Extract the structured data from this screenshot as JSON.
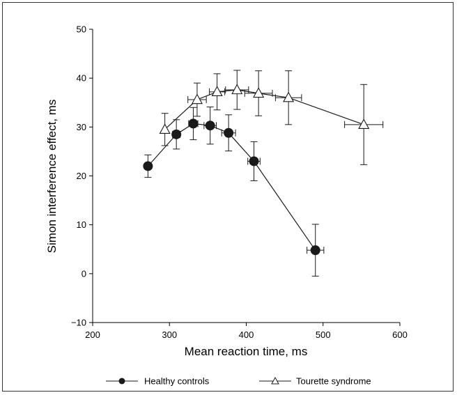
{
  "chart_data": {
    "type": "scatter",
    "title": "",
    "xlabel": "Mean reaction time, ms",
    "ylabel": "Simon interference effect, ms",
    "xlim": [
      200,
      600
    ],
    "ylim": [
      -10,
      50
    ],
    "xticks": [
      "200",
      "300",
      "400",
      "500",
      "600"
    ],
    "yticks": [
      "−10",
      "0",
      "10",
      "20",
      "30",
      "40",
      "50"
    ],
    "grid": false,
    "legend_position": "bottom",
    "series": [
      {
        "name": "Healthy controls",
        "marker": "filled-circle",
        "color": "#1a1a1a",
        "points": [
          {
            "x": 272,
            "y": 22.0,
            "yerr": 2.3,
            "xerr": 0
          },
          {
            "x": 309,
            "y": 28.5,
            "yerr": 3.0,
            "xerr": 5
          },
          {
            "x": 331,
            "y": 30.7,
            "yerr": 3.3,
            "xerr": 6
          },
          {
            "x": 353,
            "y": 30.3,
            "yerr": 3.8,
            "xerr": 8
          },
          {
            "x": 377,
            "y": 28.8,
            "yerr": 3.7,
            "xerr": 9
          },
          {
            "x": 410,
            "y": 23.0,
            "yerr": 4.0,
            "xerr": 8
          },
          {
            "x": 490,
            "y": 4.8,
            "yerr": 5.3,
            "xerr": 11
          }
        ]
      },
      {
        "name": "Tourette syndrome",
        "marker": "open-triangle",
        "color": "#1a1a1a",
        "points": [
          {
            "x": 294,
            "y": 29.5,
            "yerr": 3.3,
            "xerr": 0
          },
          {
            "x": 336,
            "y": 35.6,
            "yerr": 3.4,
            "xerr": 12
          },
          {
            "x": 362,
            "y": 37.2,
            "yerr": 3.7,
            "xerr": 10
          },
          {
            "x": 388,
            "y": 37.6,
            "yerr": 4.0,
            "xerr": 15
          },
          {
            "x": 416,
            "y": 36.9,
            "yerr": 4.6,
            "xerr": 18
          },
          {
            "x": 455,
            "y": 36.0,
            "yerr": 5.5,
            "xerr": 17
          },
          {
            "x": 553,
            "y": 30.5,
            "yerr": 8.2,
            "xerr": 25
          }
        ]
      }
    ]
  }
}
